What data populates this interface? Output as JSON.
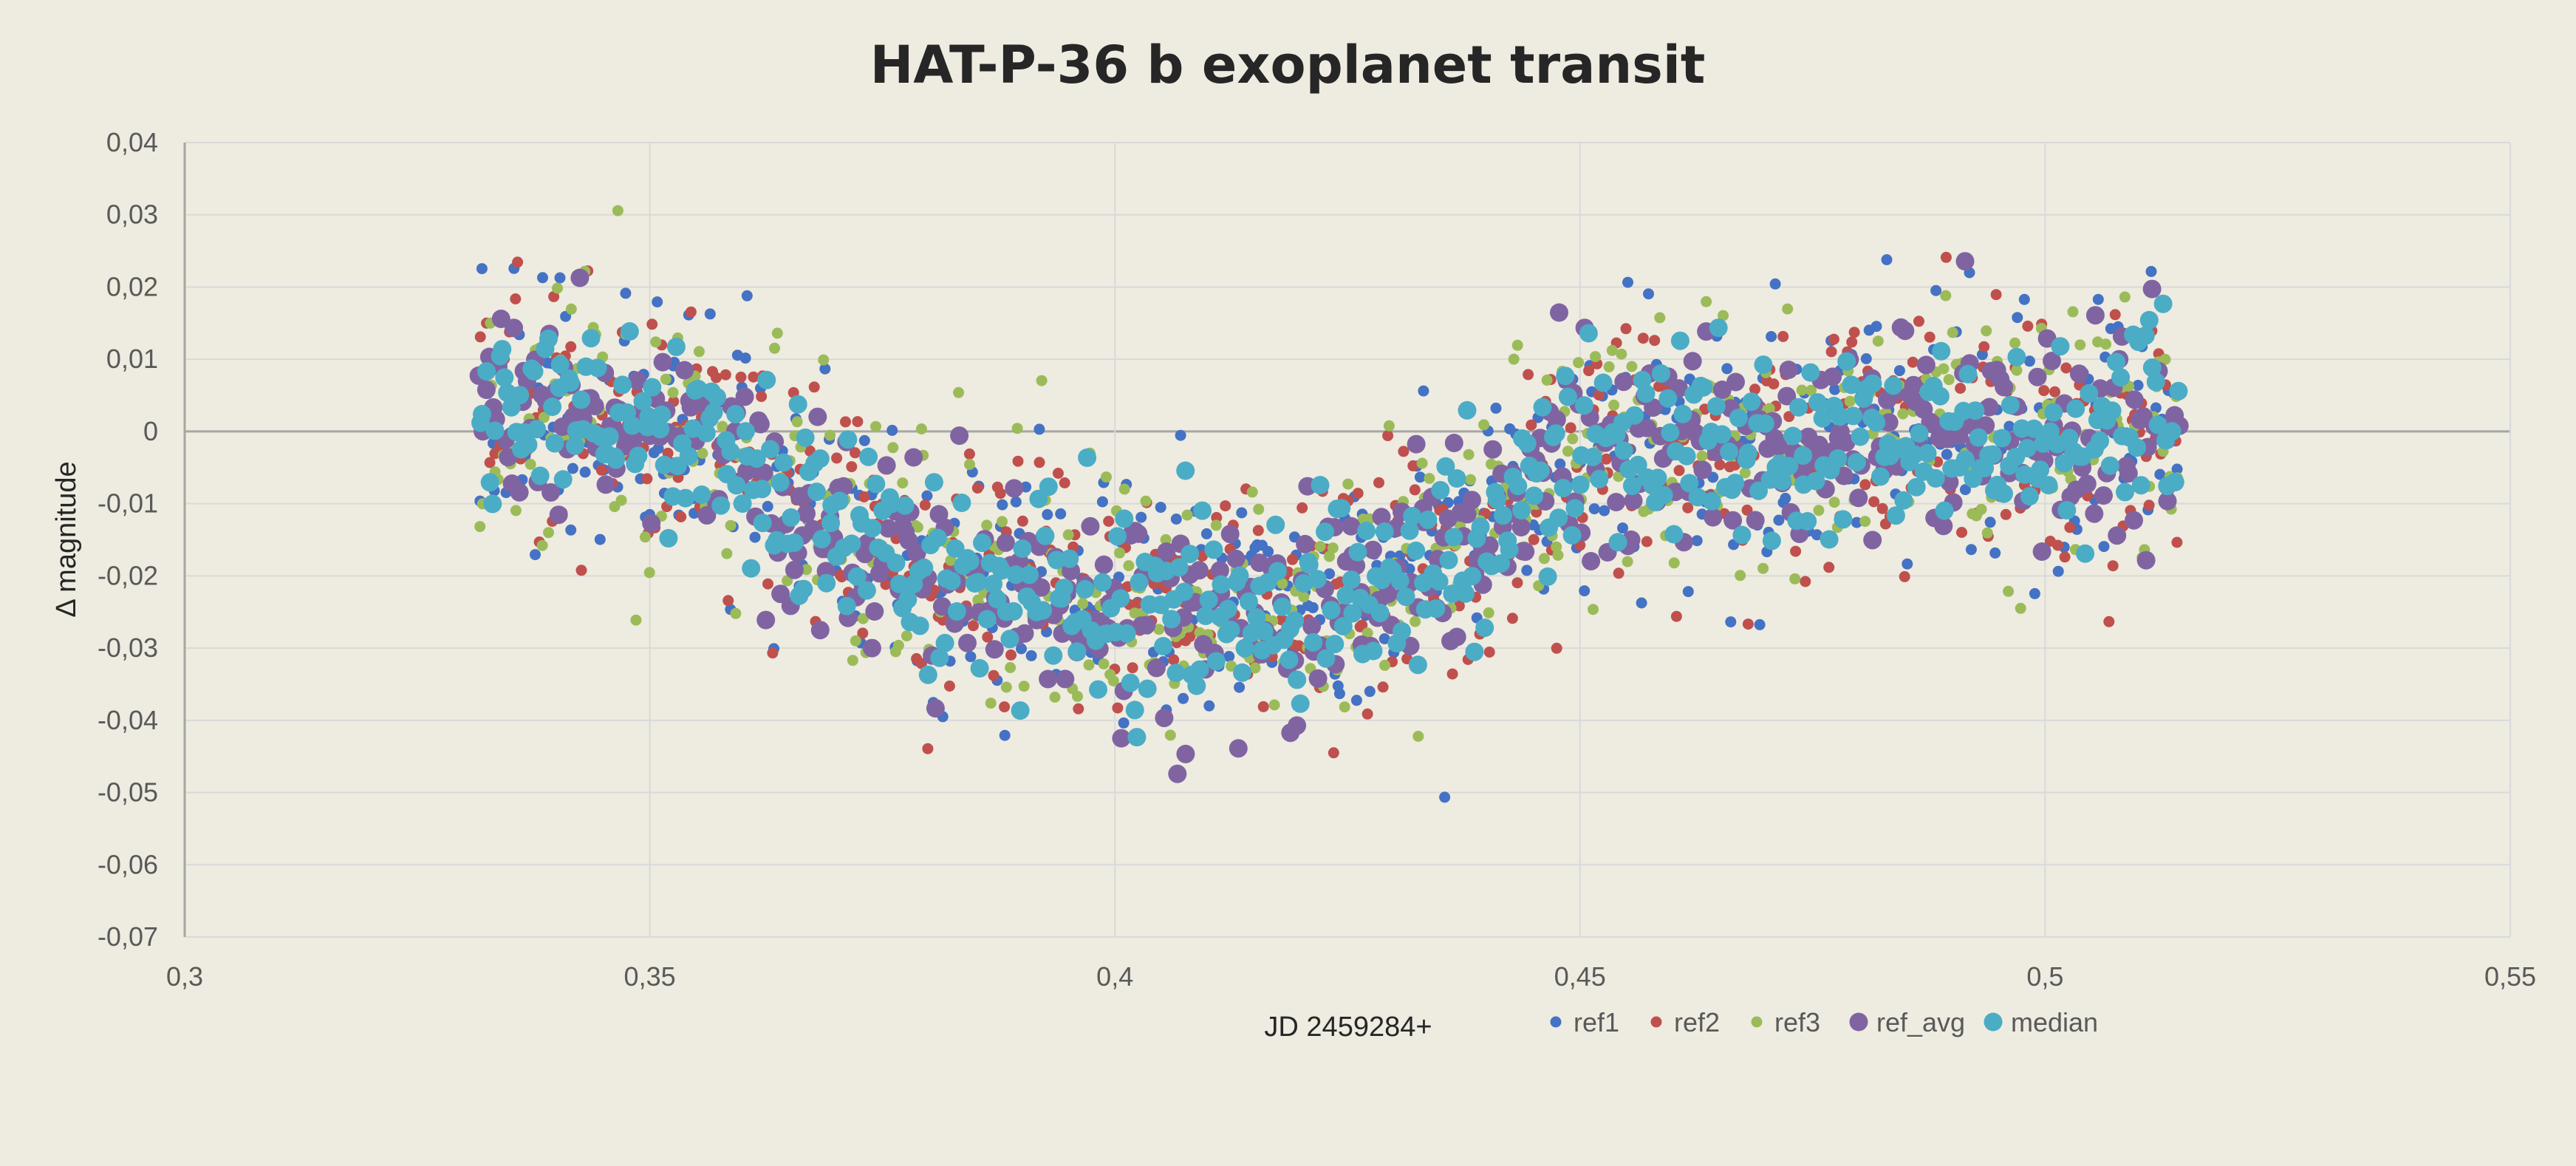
{
  "chart_data": {
    "type": "scatter",
    "title": "HAT-P-36 b exoplanet transit",
    "xlabel": "JD 2459284+",
    "ylabel": "Δ magnitude",
    "xlim": [
      0.3,
      0.55
    ],
    "ylim": [
      -0.07,
      0.04
    ],
    "x_ticks": [
      0.3,
      0.35,
      0.4,
      0.45,
      0.5,
      0.55
    ],
    "x_tick_labels": [
      "0,3",
      "0,35",
      "0,4",
      "0,45",
      "0,5",
      "0,55"
    ],
    "y_ticks": [
      0.04,
      0.03,
      0.02,
      0.01,
      0,
      -0.01,
      -0.02,
      -0.03,
      -0.04,
      -0.05,
      -0.06,
      -0.07
    ],
    "y_tick_labels": [
      "0,04",
      "0,03",
      "0,02",
      "0,01",
      "0",
      "-0,01",
      "-0,02",
      "-0,03",
      "-0,04",
      "-0,05",
      "-0,06",
      "-0,07"
    ],
    "grid": true,
    "legend_position": "bottom",
    "series": [
      {
        "name": "ref1",
        "color": "#4472c4",
        "marker_size": "small"
      },
      {
        "name": "ref2",
        "color": "#c0504d",
        "marker_size": "small"
      },
      {
        "name": "ref3",
        "color": "#9bbb59",
        "marker_size": "small"
      },
      {
        "name": "ref_avg",
        "color": "#8064a2",
        "marker_size": "large"
      },
      {
        "name": "median",
        "color": "#4bacc6",
        "marker_size": "large"
      }
    ],
    "light_curve": {
      "x_start": 0.3315,
      "x_end": 0.5145,
      "points_per_series": 520,
      "profile": [
        [
          0.3315,
          0.0
        ],
        [
          0.34,
          0.002
        ],
        [
          0.35,
          0.0
        ],
        [
          0.356,
          -0.002
        ],
        [
          0.362,
          -0.008
        ],
        [
          0.37,
          -0.014
        ],
        [
          0.38,
          -0.019
        ],
        [
          0.39,
          -0.021
        ],
        [
          0.4,
          -0.023
        ],
        [
          0.41,
          -0.024
        ],
        [
          0.42,
          -0.023
        ],
        [
          0.43,
          -0.02
        ],
        [
          0.438,
          -0.016
        ],
        [
          0.444,
          -0.009
        ],
        [
          0.45,
          -0.002
        ],
        [
          0.46,
          -0.003
        ],
        [
          0.47,
          -0.001
        ],
        [
          0.48,
          0.0
        ],
        [
          0.49,
          0.0
        ],
        [
          0.5,
          -0.001
        ],
        [
          0.5145,
          0.0
        ]
      ],
      "scatter_amplitude": 0.0085
    }
  }
}
